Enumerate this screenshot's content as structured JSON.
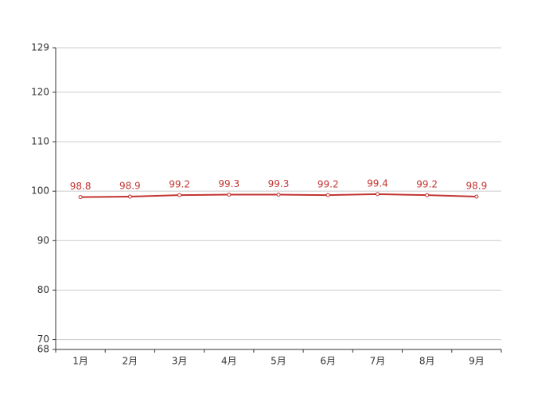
{
  "chart_data": {
    "type": "line",
    "categories": [
      "1月",
      "2月",
      "3月",
      "4月",
      "5月",
      "6月",
      "7月",
      "8月",
      "9月"
    ],
    "series": [
      {
        "color": "#c23531",
        "values": [
          98.8,
          98.9,
          99.2,
          99.3,
          99.3,
          99.2,
          99.4,
          99.2,
          98.9
        ]
      }
    ],
    "ylim": [
      68,
      129
    ],
    "yticks": [
      68,
      70,
      80,
      90,
      100,
      110,
      120,
      129
    ],
    "grid": true,
    "value_labels_shown": true
  }
}
